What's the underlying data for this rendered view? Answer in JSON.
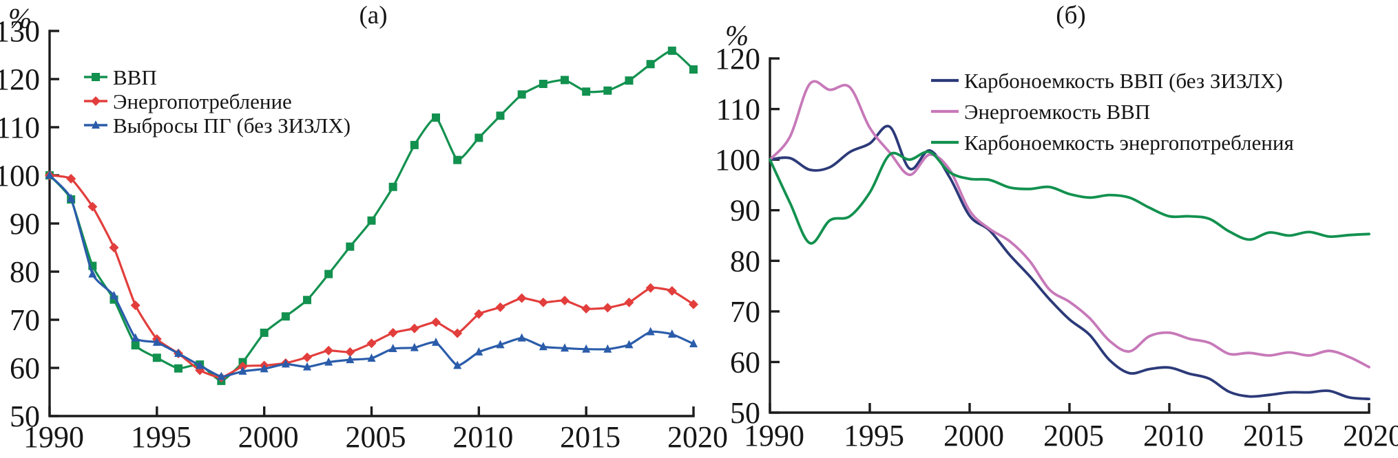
{
  "figure": {
    "background": "#ffffff",
    "axis_color": "#1c1c1c",
    "text_color": "#161616"
  },
  "chart_data": [
    {
      "type": "line",
      "title": "(а)",
      "ylabel": "%",
      "xlabel": "",
      "legend_position": "top-left",
      "grid": false,
      "xlim": [
        1990,
        2020
      ],
      "ylim": [
        50,
        130
      ],
      "x_ticks": [
        1990,
        1995,
        2000,
        2005,
        2010,
        2015,
        2020
      ],
      "y_ticks": [
        50,
        60,
        70,
        80,
        90,
        100,
        110,
        120,
        130
      ],
      "x": [
        1990,
        1991,
        1992,
        1993,
        1994,
        1995,
        1996,
        1997,
        1998,
        1999,
        2000,
        2001,
        2002,
        2003,
        2004,
        2005,
        2006,
        2007,
        2008,
        2009,
        2010,
        2011,
        2012,
        2013,
        2014,
        2015,
        2016,
        2017,
        2018,
        2019,
        2020
      ],
      "series": [
        {
          "name": "ВВП",
          "color": "#12914f",
          "marker": "square",
          "values": [
            100,
            95,
            81.2,
            74.2,
            64.7,
            62.1,
            59.9,
            60.7,
            57.3,
            61.2,
            67.3,
            70.7,
            74.1,
            79.5,
            85.2,
            90.6,
            97.6,
            106.3,
            112,
            103.2,
            107.8,
            112.4,
            116.8,
            119,
            119.8,
            117.4,
            117.6,
            119.7,
            123.1,
            125.9,
            122
          ]
        },
        {
          "name": "Энергопотребление",
          "color": "#e23e3c",
          "marker": "diamond",
          "values": [
            100,
            99.3,
            93.5,
            85,
            73,
            66,
            63,
            59.5,
            58,
            60.3,
            60.5,
            61,
            62.2,
            63.6,
            63.3,
            65.1,
            67.3,
            68.2,
            69.5,
            67.2,
            71.2,
            72.6,
            74.5,
            73.6,
            74,
            72.3,
            72.5,
            73.6,
            76.6,
            76,
            73.2
          ]
        },
        {
          "name": "Выбросы ПГ (без ЗИЗЛХ)",
          "color": "#2a5caa",
          "marker": "triangle",
          "values": [
            100,
            95.2,
            79.5,
            75,
            66.2,
            65.3,
            63,
            60.5,
            58.2,
            59.3,
            59.8,
            60.8,
            60.2,
            61.2,
            61.7,
            62,
            64,
            64.2,
            65.3,
            60.5,
            63.3,
            64.8,
            66.2,
            64.4,
            64.1,
            63.9,
            63.9,
            64.8,
            67.5,
            67,
            65
          ]
        }
      ]
    },
    {
      "type": "line",
      "title": "(б)",
      "ylabel": "%",
      "xlabel": "",
      "legend_position": "top-right",
      "grid": false,
      "xlim": [
        1990,
        2020
      ],
      "ylim": [
        50,
        120
      ],
      "x_ticks": [
        1990,
        1995,
        2000,
        2005,
        2010,
        2015,
        2020
      ],
      "y_ticks": [
        50,
        60,
        70,
        80,
        90,
        100,
        110,
        120
      ],
      "x": [
        1990,
        1991,
        1992,
        1993,
        1994,
        1995,
        1996,
        1997,
        1998,
        1999,
        2000,
        2001,
        2002,
        2003,
        2004,
        2005,
        2006,
        2007,
        2008,
        2009,
        2010,
        2011,
        2012,
        2013,
        2014,
        2015,
        2016,
        2017,
        2018,
        2019,
        2020
      ],
      "series": [
        {
          "name": "Карбоноемкость ВВП (без ЗИЗЛХ)",
          "color": "#2c3a79",
          "marker": "none",
          "values": [
            100,
            100.3,
            98,
            98.5,
            101.5,
            103.2,
            106.5,
            98.2,
            101.8,
            96.5,
            88.9,
            86,
            81.2,
            77,
            72.4,
            68.4,
            65.4,
            60.4,
            57.8,
            58.6,
            58.9,
            57.7,
            56.7,
            54.1,
            53.2,
            53.5,
            54,
            54,
            54.3,
            53,
            52.7
          ]
        },
        {
          "name": "Энергоемкость ВВП",
          "color": "#c779b9",
          "marker": "none",
          "values": [
            100,
            104.5,
            115,
            113.8,
            114.3,
            106.3,
            101.4,
            97,
            101,
            98,
            89.9,
            86.3,
            83.9,
            80,
            74.3,
            71.9,
            68.7,
            64.2,
            62.1,
            65.1,
            65.8,
            64.6,
            63.8,
            61.6,
            61.8,
            61.3,
            61.9,
            61.3,
            62.2,
            61,
            59
          ]
        },
        {
          "name": "Карбоноемкость энергопотребления",
          "color": "#12914f",
          "marker": "none",
          "values": [
            100,
            91.5,
            83.5,
            88,
            88.8,
            93.5,
            101,
            100,
            101.5,
            97.5,
            96.2,
            96,
            94.5,
            94.2,
            94.6,
            93.2,
            92.5,
            93,
            92.5,
            90.5,
            88.8,
            88.8,
            88.3,
            85.8,
            84.2,
            85.6,
            85,
            85.7,
            84.8,
            85.1,
            85.3
          ]
        }
      ]
    }
  ]
}
